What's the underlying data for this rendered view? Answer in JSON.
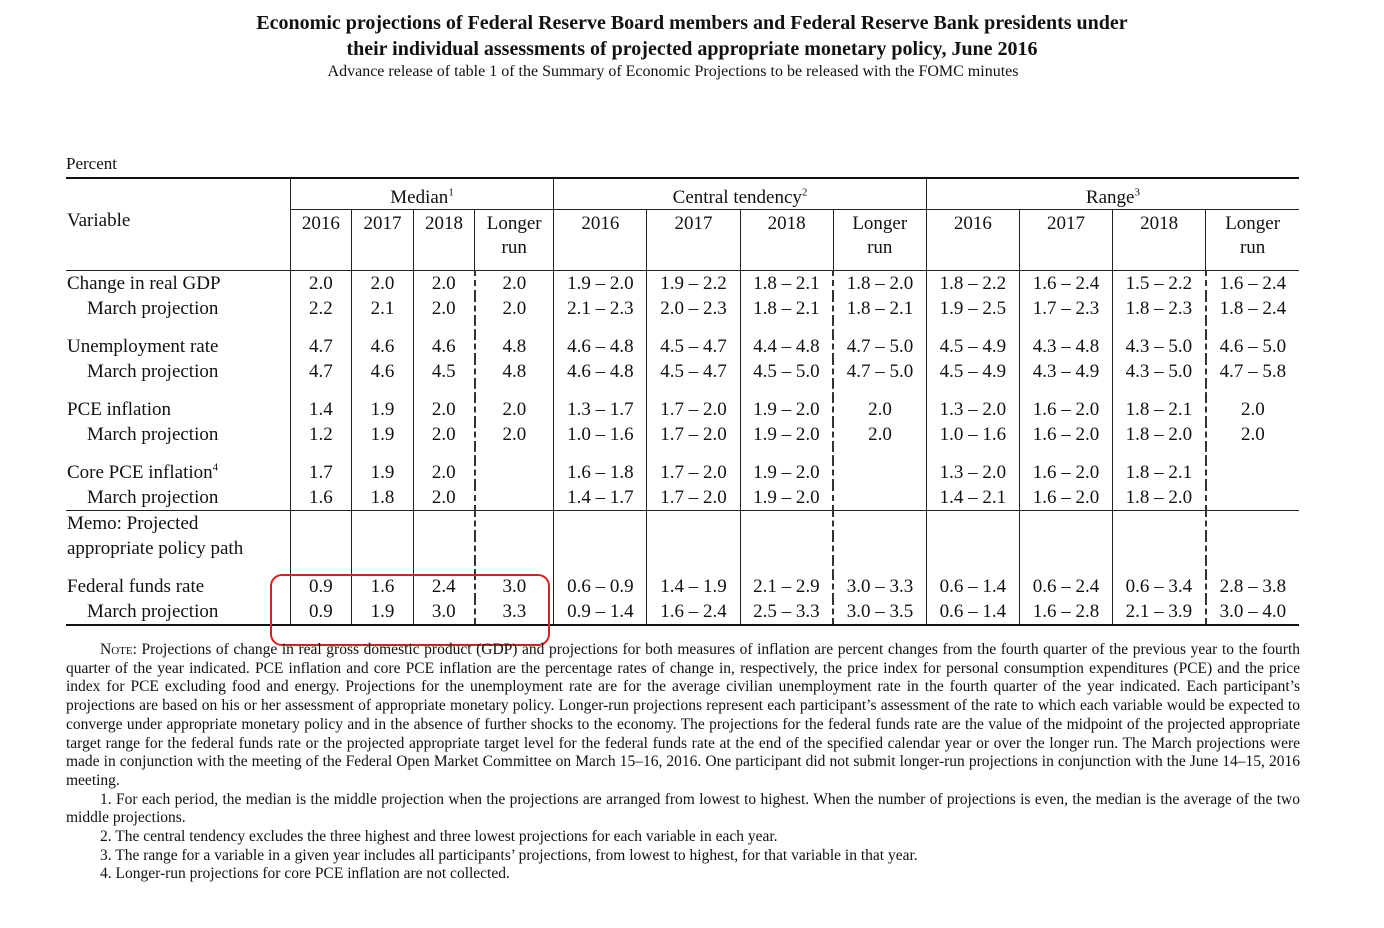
{
  "header": {
    "title_line1": "Economic projections of Federal Reserve Board members and Federal Reserve Bank presidents under",
    "title_line2": "their individual assessments of projected appropriate monetary policy, June 2016",
    "subtitle": "Advance release of table 1 of the Summary of Economic Projections to be released with the FOMC minutes"
  },
  "table": {
    "unit": "Percent",
    "variable_header": "Variable",
    "groups": {
      "median": {
        "label": "Median",
        "note": "1"
      },
      "central": {
        "label": "Central tendency",
        "note": "2"
      },
      "range": {
        "label": "Range",
        "note": "3"
      }
    },
    "years": [
      "2016",
      "2017",
      "2018",
      "Longer",
      "run"
    ],
    "rows": {
      "gdp": {
        "label": "Change in real GDP",
        "values": [
          "2.0",
          "2.0",
          "2.0",
          "2.0",
          "1.9 – 2.0",
          "1.9 – 2.2",
          "1.8 – 2.1",
          "1.8 – 2.0",
          "1.8 – 2.2",
          "1.6 – 2.4",
          "1.5 – 2.2",
          "1.6 – 2.4"
        ]
      },
      "gdp_march": {
        "label": "March projection",
        "values": [
          "2.2",
          "2.1",
          "2.0",
          "2.0",
          "2.1 – 2.3",
          "2.0 – 2.3",
          "1.8 – 2.1",
          "1.8 – 2.1",
          "1.9 – 2.5",
          "1.7 – 2.3",
          "1.8 – 2.3",
          "1.8 – 2.4"
        ]
      },
      "unemp": {
        "label": "Unemployment rate",
        "values": [
          "4.7",
          "4.6",
          "4.6",
          "4.8",
          "4.6 – 4.8",
          "4.5 – 4.7",
          "4.4 – 4.8",
          "4.7 – 5.0",
          "4.5 – 4.9",
          "4.3 – 4.8",
          "4.3 – 5.0",
          "4.6 – 5.0"
        ]
      },
      "unemp_march": {
        "label": "March projection",
        "values": [
          "4.7",
          "4.6",
          "4.5",
          "4.8",
          "4.6 – 4.8",
          "4.5 – 4.7",
          "4.5 – 5.0",
          "4.7 – 5.0",
          "4.5 – 4.9",
          "4.3 – 4.9",
          "4.3 – 5.0",
          "4.7 – 5.8"
        ]
      },
      "pce": {
        "label": "PCE inflation",
        "values": [
          "1.4",
          "1.9",
          "2.0",
          "2.0",
          "1.3 – 1.7",
          "1.7 – 2.0",
          "1.9 – 2.0",
          "2.0",
          "1.3 – 2.0",
          "1.6 – 2.0",
          "1.8 – 2.1",
          "2.0"
        ]
      },
      "pce_march": {
        "label": "March projection",
        "values": [
          "1.2",
          "1.9",
          "2.0",
          "2.0",
          "1.0 – 1.6",
          "1.7 – 2.0",
          "1.9 – 2.0",
          "2.0",
          "1.0 – 1.6",
          "1.6 – 2.0",
          "1.8 – 2.0",
          "2.0"
        ]
      },
      "core": {
        "label": "Core PCE inflation",
        "note": "4",
        "values": [
          "1.7",
          "1.9",
          "2.0",
          "",
          "1.6 – 1.8",
          "1.7 – 2.0",
          "1.9 – 2.0",
          "",
          "1.3 – 2.0",
          "1.6 – 2.0",
          "1.8 – 2.1",
          ""
        ]
      },
      "core_march": {
        "label": "March projection",
        "values": [
          "1.6",
          "1.8",
          "2.0",
          "",
          "1.4 – 1.7",
          "1.7 – 2.0",
          "1.9 – 2.0",
          "",
          "1.4 – 2.1",
          "1.6 – 2.0",
          "1.8 – 2.0",
          ""
        ]
      },
      "memo_line1": "Memo: Projected",
      "memo_line2": "appropriate policy path",
      "ffr": {
        "label": "Federal funds rate",
        "values": [
          "0.9",
          "1.6",
          "2.4",
          "3.0",
          "0.6 – 0.9",
          "1.4 – 1.9",
          "2.1 – 2.9",
          "3.0 – 3.3",
          "0.6 – 1.4",
          "0.6 – 2.4",
          "0.6 – 3.4",
          "2.8 – 3.8"
        ]
      },
      "ffr_march": {
        "label": "March projection",
        "values": [
          "0.9",
          "1.9",
          "3.0",
          "3.3",
          "0.9 – 1.4",
          "1.6 – 2.4",
          "2.5 – 3.3",
          "3.0 – 3.5",
          "0.6 – 1.4",
          "1.6 – 2.8",
          "2.1 – 3.9",
          "3.0 – 4.0"
        ]
      }
    }
  },
  "annotation": {
    "color": "#d42020"
  },
  "notes": {
    "note_label": "Note:",
    "note_text": "Projections of change in real gross domestic product (GDP) and projections for both measures of inflation are percent changes from the fourth quarter of the previous year to the fourth quarter of the year indicated. PCE inflation and core PCE inflation are the percentage rates of change in, respectively, the price index for personal consumption expenditures (PCE) and the price index for PCE excluding food and energy. Projections for the unemployment rate are for the average civilian unemployment rate in the fourth quarter of the year indicated. Each participant’s projections are based on his or her assessment of appropriate monetary policy. Longer-run projections represent each participant’s assessment of the rate to which each variable would be expected to converge under appropriate monetary policy and in the absence of further shocks to the economy. The projections for the federal funds rate are the value of the midpoint of the projected appropriate target range for the federal funds rate or the projected appropriate target level for the federal funds rate at the end of the specified calendar year or over the longer run. The March projections were made in conjunction with the meeting of the Federal Open Market Committee on March 15–16, 2016. One participant did not submit longer-run projections in conjunction with the June 14–15, 2016 meeting.",
    "fn1": "1. For each period, the median is the middle projection when the projections are arranged from lowest to highest. When the number of projections is even, the median is the average of the two middle projections.",
    "fn2": "2. The central tendency excludes the three highest and three lowest projections for each variable in each year.",
    "fn3": "3. The range for a variable in a given year includes all participants’ projections, from lowest to highest, for that variable in that year.",
    "fn4": "4. Longer-run projections for core PCE inflation are not collected."
  }
}
